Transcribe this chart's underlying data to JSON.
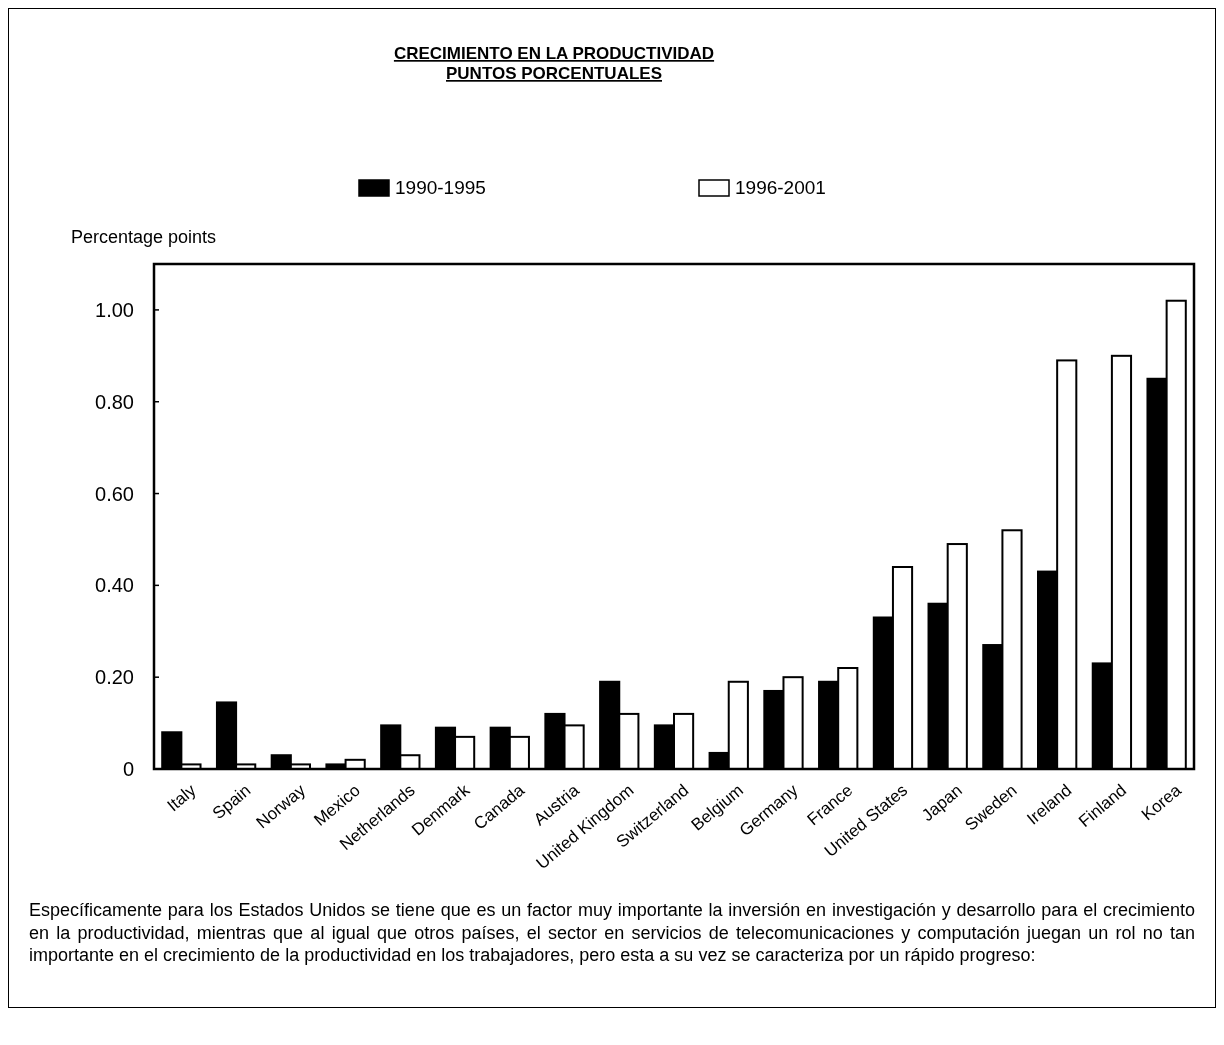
{
  "chart_data": {
    "type": "bar",
    "title": "CRECIMIENTO EN LA PRODUCTIVIDAD",
    "subtitle": "PUNTOS PORCENTUALES",
    "ylabel": "Percentage points",
    "categories": [
      "Italy",
      "Spain",
      "Norway",
      "Mexico",
      "Netherlands",
      "Denmark",
      "Canada",
      "Austria",
      "United Kingdom",
      "Switzerland",
      "Belgium",
      "Germany",
      "France",
      "United States",
      "Japan",
      "Sweden",
      "Ireland",
      "Finland",
      "Korea"
    ],
    "series": [
      {
        "name": "1990-1995",
        "color": "#000000",
        "values": [
          0.08,
          0.145,
          0.03,
          0.01,
          0.095,
          0.09,
          0.09,
          0.12,
          0.19,
          0.095,
          0.035,
          0.17,
          0.19,
          0.33,
          0.36,
          0.27,
          0.43,
          0.23,
          0.85
        ]
      },
      {
        "name": "1996-2001",
        "color": "#ffffff",
        "values": [
          0.01,
          0.01,
          0.01,
          0.02,
          0.03,
          0.07,
          0.07,
          0.095,
          0.12,
          0.12,
          0.19,
          0.2,
          0.22,
          0.44,
          0.49,
          0.52,
          0.89,
          0.9,
          1.02
        ]
      }
    ],
    "ylim": [
      0,
      1.1
    ],
    "yticks": [
      0,
      {
        "value": 0.2,
        "label": "0.20"
      },
      {
        "value": 0.4,
        "label": "0.40"
      },
      {
        "value": 0.6,
        "label": "0.60"
      },
      {
        "value": 0.8,
        "label": "0.80"
      },
      {
        "value": 1,
        "label": "1.00"
      }
    ],
    "legend": "top",
    "grid": false,
    "annotations": [
      "Específicamente para los Estados Unidos se tiene que es un factor muy importante la inversión en investigación y desarrollo para el crecimiento en la productividad, mientras que al igual que otros países, el sector en servicios de telecomunicaciones y computación juegan un rol no tan importante en el crecimiento de la productividad en los trabajadores, pero esta a su vez se caracteriza por un rápido progreso:"
    ]
  }
}
